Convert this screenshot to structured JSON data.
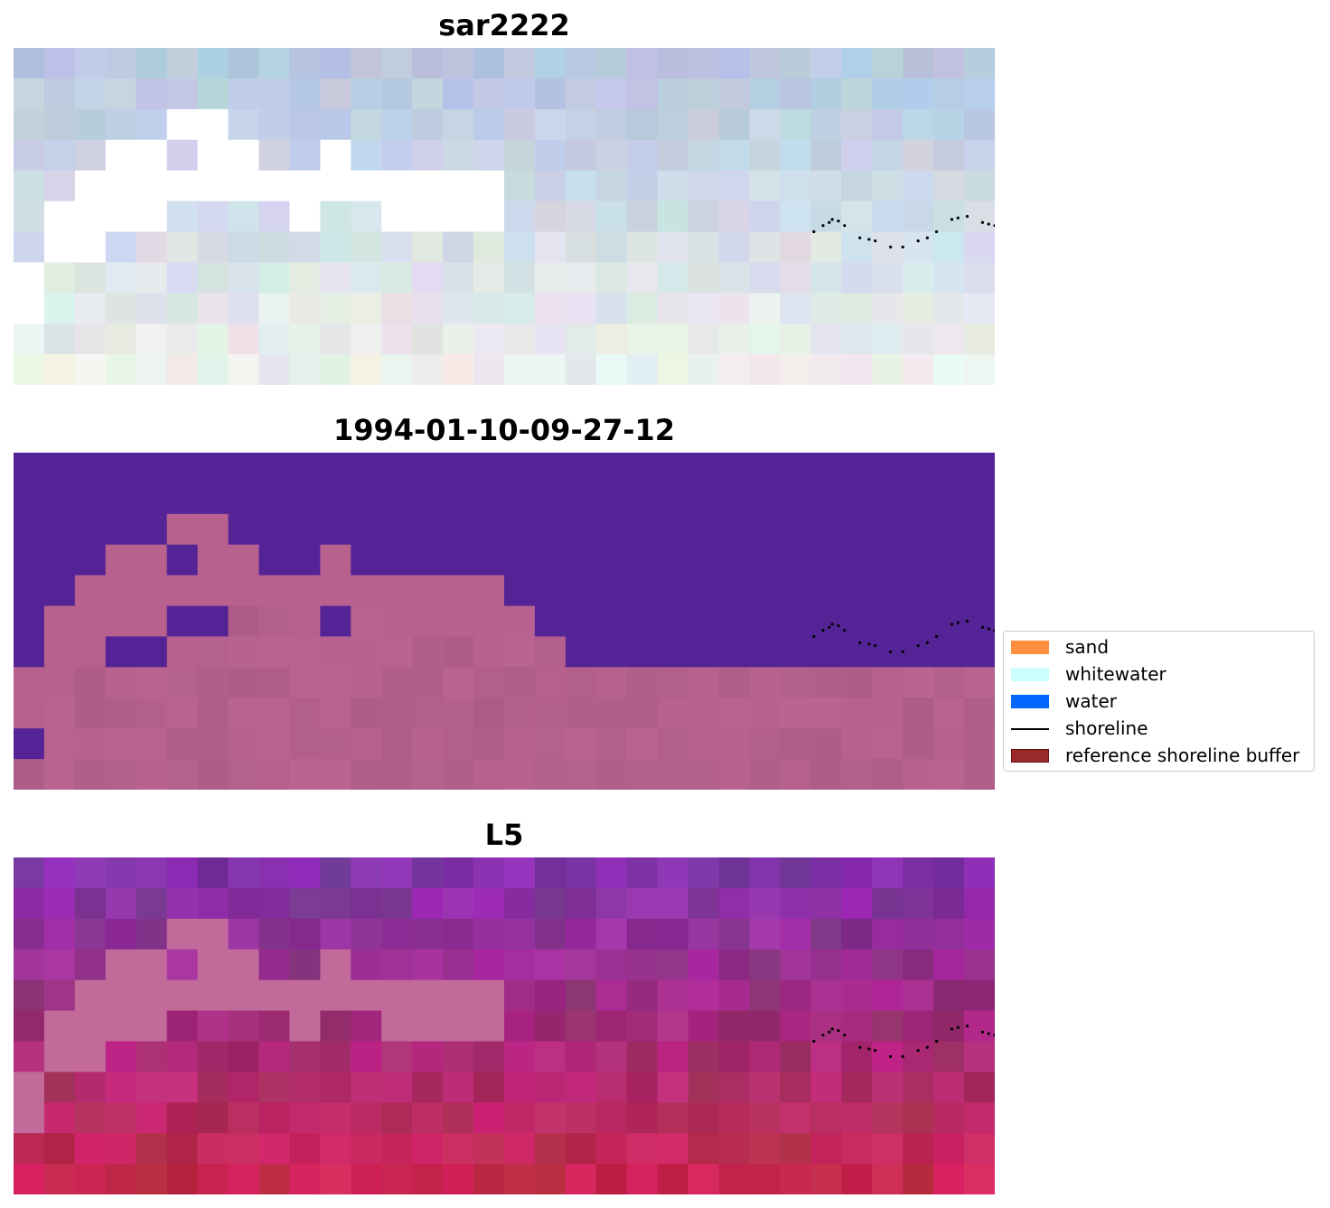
{
  "chart_data": [
    {
      "type": "heatmap",
      "title": "sar2222",
      "grid": {
        "cols": 32,
        "rows": 11
      },
      "axes_visible": false,
      "shoreline_points": [
        [
          26.1,
          6.0
        ],
        [
          26.4,
          5.8
        ],
        [
          26.6,
          5.7
        ],
        [
          26.7,
          5.6
        ],
        [
          26.9,
          5.65
        ],
        [
          27.1,
          5.8
        ],
        [
          27.6,
          6.2
        ],
        [
          27.9,
          6.25
        ],
        [
          28.1,
          6.3
        ],
        [
          28.6,
          6.5
        ],
        [
          29.0,
          6.5
        ],
        [
          29.5,
          6.3
        ],
        [
          29.8,
          6.2
        ],
        [
          30.1,
          6.0
        ],
        [
          30.6,
          5.6
        ],
        [
          30.8,
          5.55
        ],
        [
          31.1,
          5.5
        ],
        [
          31.6,
          5.7
        ],
        [
          31.8,
          5.75
        ],
        [
          32.0,
          5.8
        ]
      ],
      "masked_color": "#ffffff"
    },
    {
      "type": "heatmap",
      "title": "1994-01-10-09-27-12",
      "grid": {
        "cols": 32,
        "rows": 11
      },
      "axes_visible": false,
      "class_colors": {
        "water_class": "#542497",
        "land_class": "#b8618f"
      },
      "shoreline_points": "same as panel 1"
    },
    {
      "type": "heatmap",
      "title": "L5",
      "grid": {
        "cols": 32,
        "rows": 11
      },
      "axes_visible": false,
      "shoreline_points": "same as panel 1"
    }
  ],
  "legend": {
    "placement": "right-center",
    "items": [
      {
        "label": "sand",
        "kind": "patch",
        "color": "#ff8f3f"
      },
      {
        "label": "whitewater",
        "kind": "patch",
        "color": "#ccffff"
      },
      {
        "label": "water",
        "kind": "patch",
        "color": "#0066ff"
      },
      {
        "label": "shoreline",
        "kind": "line",
        "color": "#000000"
      },
      {
        "label": "reference shoreline buffer",
        "kind": "patch",
        "color": "#9a2a2a",
        "edge": "#6a1010"
      }
    ]
  }
}
